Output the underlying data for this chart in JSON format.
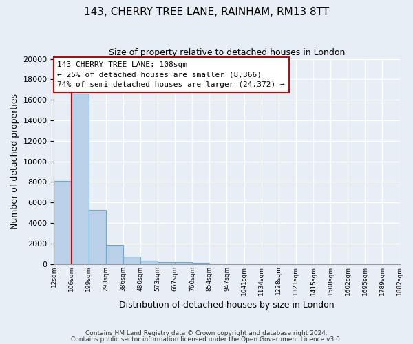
{
  "title1": "143, CHERRY TREE LANE, RAINHAM, RM13 8TT",
  "title2": "Size of property relative to detached houses in London",
  "xlabel": "Distribution of detached houses by size in London",
  "ylabel": "Number of detached properties",
  "bar_values": [
    8100,
    16600,
    5300,
    1850,
    700,
    310,
    210,
    170,
    130,
    0,
    0,
    0,
    0,
    0,
    0,
    0,
    0,
    0,
    0,
    0
  ],
  "bin_labels": [
    "12sqm",
    "106sqm",
    "199sqm",
    "293sqm",
    "386sqm",
    "480sqm",
    "573sqm",
    "667sqm",
    "760sqm",
    "854sqm",
    "947sqm",
    "1041sqm",
    "1134sqm",
    "1228sqm",
    "1321sqm",
    "1415sqm",
    "1508sqm",
    "1602sqm",
    "1695sqm",
    "1789sqm",
    "1882sqm"
  ],
  "bar_color": "#b8d0e8",
  "bar_edge_color": "#6aaad4",
  "vline_x": 1,
  "vline_color": "#cc0000",
  "annotation_title": "143 CHERRY TREE LANE: 108sqm",
  "annotation_line2": "← 25% of detached houses are smaller (8,366)",
  "annotation_line3": "74% of semi-detached houses are larger (24,372) →",
  "annotation_box_color": "#ffffff",
  "annotation_box_edge": "#cc0000",
  "ylim": [
    0,
    20000
  ],
  "yticks": [
    0,
    2000,
    4000,
    6000,
    8000,
    10000,
    12000,
    14000,
    16000,
    18000,
    20000
  ],
  "footer1": "Contains HM Land Registry data © Crown copyright and database right 2024.",
  "footer2": "Contains public sector information licensed under the Open Government Licence v3.0.",
  "bg_color": "#e8eef5",
  "grid_color": "#d0dcea"
}
